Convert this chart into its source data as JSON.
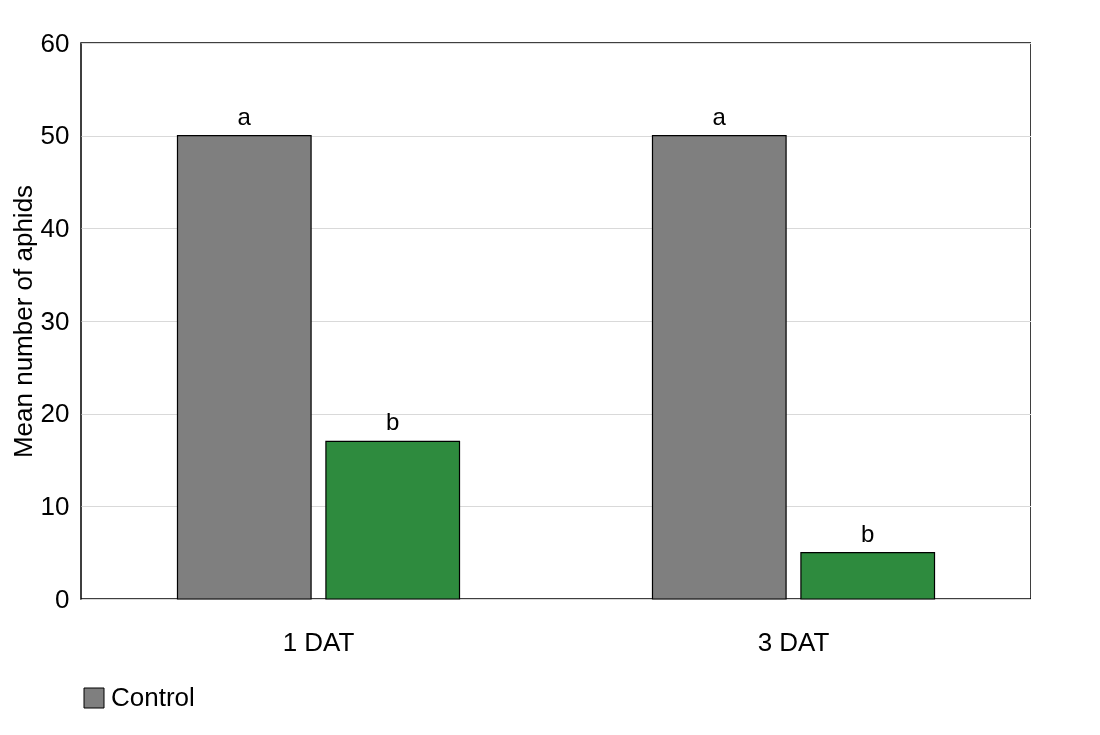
{
  "chart_data": {
    "type": "bar",
    "ylabel": "Mean number of aphids",
    "categories": [
      "1 DAT",
      "3 DAT"
    ],
    "series": [
      {
        "name": "Control",
        "color": "#7f7f7f",
        "values": [
          50,
          50
        ],
        "value_labels": [
          "a",
          "a"
        ]
      },
      {
        "color": "#2e8b3e",
        "values": [
          17,
          5
        ],
        "value_labels": [
          "b",
          "b"
        ]
      }
    ],
    "ylim": [
      0,
      60
    ],
    "yticks": [
      0,
      10,
      20,
      30,
      40,
      50,
      60
    ],
    "grid": "y",
    "legend": "bottom"
  }
}
